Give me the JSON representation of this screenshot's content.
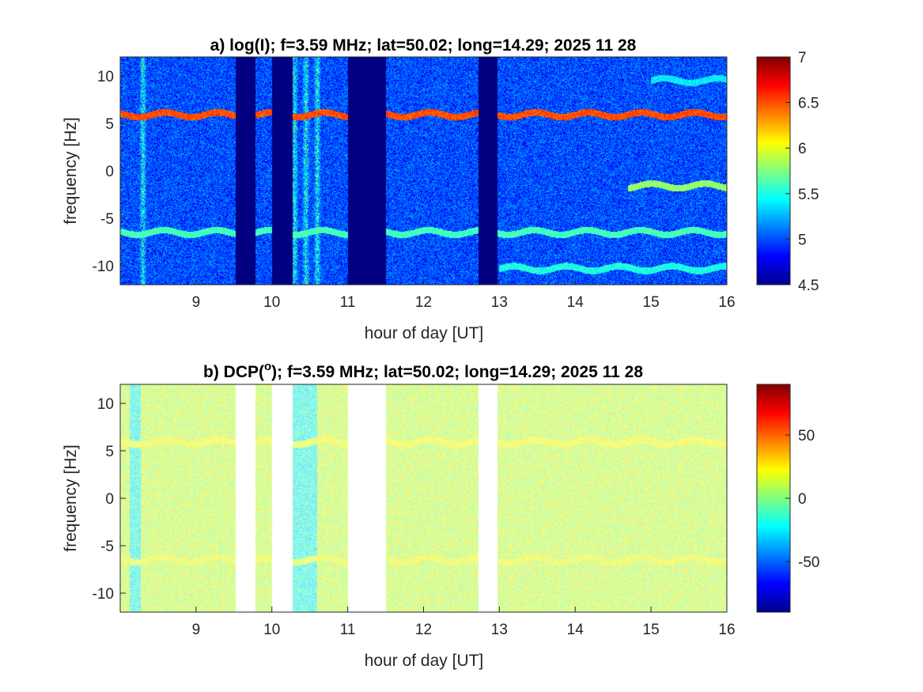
{
  "chart_data": [
    {
      "type": "heatmap",
      "title": "a) log(I); f=3.59 MHz;  lat=50.02; long=14.29; 2025 11 28",
      "xlabel": "hour of day [UT]",
      "ylabel": "frequency [Hz]",
      "xlim": [
        8.0,
        16.0
      ],
      "ylim": [
        -12,
        12
      ],
      "xticks": [
        9,
        10,
        11,
        12,
        13,
        14,
        15,
        16
      ],
      "yticks": [
        -10,
        -5,
        0,
        5,
        10
      ],
      "colorbar": {
        "range": [
          4.5,
          7
        ],
        "ticks": [
          4.5,
          5,
          5.5,
          6,
          6.5,
          7
        ],
        "colormap": "jet"
      },
      "background_level": 5.0,
      "data_gaps_hours": [
        [
          9.52,
          9.78
        ],
        [
          10.0,
          10.27
        ],
        [
          11.0,
          11.5
        ],
        [
          12.73,
          12.98
        ]
      ],
      "gap_fill_level": 4.5,
      "bright_columns_hours": [
        8.3,
        10.3,
        10.45,
        10.6
      ],
      "lines": [
        {
          "frequency_hz": 5.9,
          "from_hour": 8.0,
          "to_hour": 16.0,
          "level": 6.5
        },
        {
          "frequency_hz": -6.5,
          "from_hour": 8.0,
          "to_hour": 16.0,
          "level": 5.6
        },
        {
          "frequency_hz": -10.3,
          "from_hour": 13.0,
          "to_hour": 16.0,
          "level": 5.5
        },
        {
          "frequency_hz": -1.6,
          "from_hour": 14.7,
          "to_hour": 16.0,
          "level": 5.8
        },
        {
          "frequency_hz": 9.5,
          "from_hour": 15.0,
          "to_hour": 16.0,
          "level": 5.4
        }
      ]
    },
    {
      "type": "heatmap",
      "title_prefix": "b) DCP(",
      "title_sup": "o",
      "title_suffix": "); f=3.59 MHz;  lat=50.02; long=14.29; 2025 11 28",
      "xlabel": "hour of day [UT]",
      "ylabel": "frequency [Hz]",
      "xlim": [
        8.0,
        16.0
      ],
      "ylim": [
        -12,
        12
      ],
      "xticks": [
        9,
        10,
        11,
        12,
        13,
        14,
        15,
        16
      ],
      "yticks": [
        -10,
        -5,
        0,
        5,
        10
      ],
      "colorbar": {
        "range": [
          -90,
          90
        ],
        "ticks": [
          -50,
          0,
          50
        ],
        "colormap": "jet"
      },
      "background_level": 12,
      "data_gaps_hours": [
        [
          9.52,
          9.78
        ],
        [
          10.0,
          10.27
        ],
        [
          11.0,
          11.5
        ],
        [
          12.73,
          12.98
        ]
      ],
      "gap_fill": "none",
      "cyan_bands_hours": [
        [
          8.12,
          8.27
        ],
        [
          10.27,
          10.6
        ]
      ],
      "lines": [
        {
          "frequency_hz": 5.9,
          "from_hour": 8.0,
          "to_hour": 16.0,
          "level": 18
        },
        {
          "frequency_hz": -6.5,
          "from_hour": 8.0,
          "to_hour": 16.0,
          "level": 16
        }
      ]
    }
  ]
}
